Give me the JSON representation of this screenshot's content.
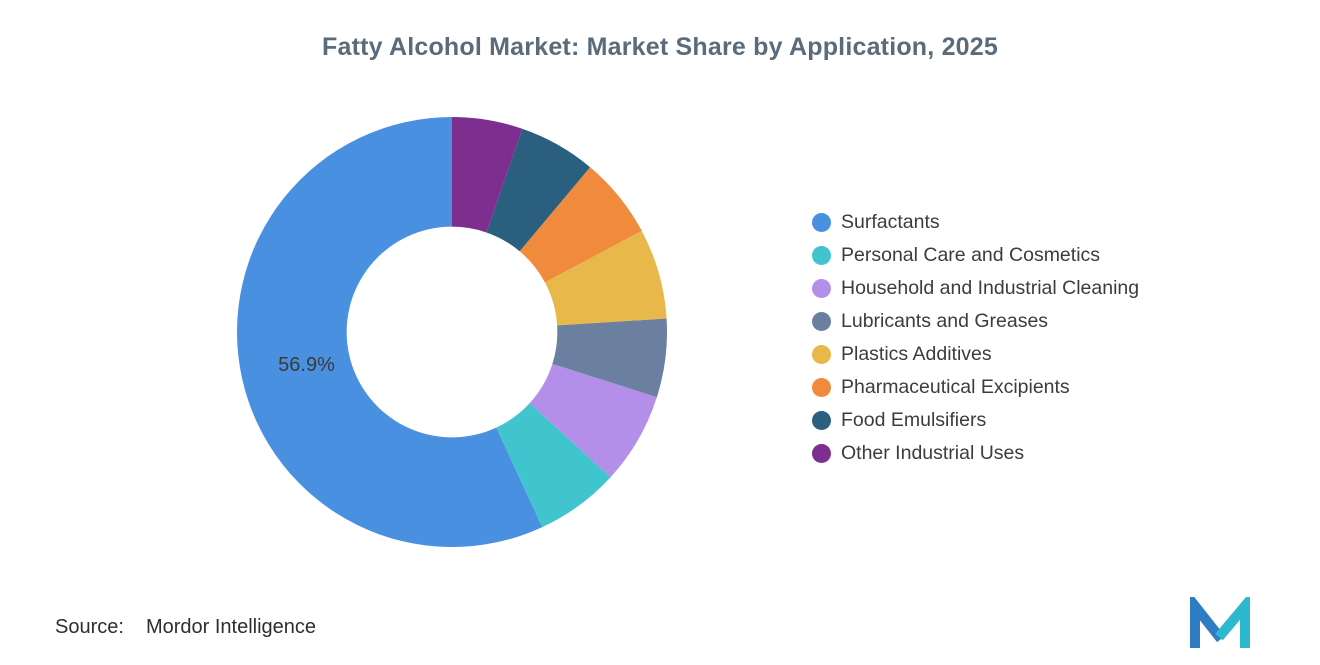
{
  "chart_data": {
    "type": "pie",
    "subtype": "donut",
    "title": "Fatty Alcohol Market: Market Share by Application, 2025",
    "legend_position": "right",
    "inner_radius_ratio": 0.49,
    "start_angle_deg": 0,
    "direction": "counterclockwise",
    "series": [
      {
        "name": "Surfactants",
        "value": 56.9,
        "color": "#4A90E0",
        "label": "56.9%"
      },
      {
        "name": "Personal Care and Cosmetics",
        "value": 6.3,
        "color": "#40C4CE"
      },
      {
        "name": "Household and Industrial Cleaning",
        "value": 6.9,
        "color": "#B48FEA"
      },
      {
        "name": "Lubricants and Greases",
        "value": 5.9,
        "color": "#6B80A0"
      },
      {
        "name": "Plastics Additives",
        "value": 6.8,
        "color": "#E8B84B"
      },
      {
        "name": "Pharmaceutical Excipients",
        "value": 6.1,
        "color": "#F08A3C"
      },
      {
        "name": "Food Emulsifiers",
        "value": 5.8,
        "color": "#2A5F80"
      },
      {
        "name": "Other Industrial Uses",
        "value": 5.3,
        "color": "#7E2E8E"
      }
    ]
  },
  "source": {
    "label": "Source:",
    "value": "Mordor Intelligence"
  },
  "logo": {
    "name": "mordor-intelligence-logo",
    "left_color": "#2F7CC3",
    "right_color": "#2CB8CD"
  },
  "colors": {
    "title": "#5a6b7b",
    "segment_label": "#3a3a3a",
    "legend_text": "#3c3c3c",
    "background": "#ffffff"
  }
}
